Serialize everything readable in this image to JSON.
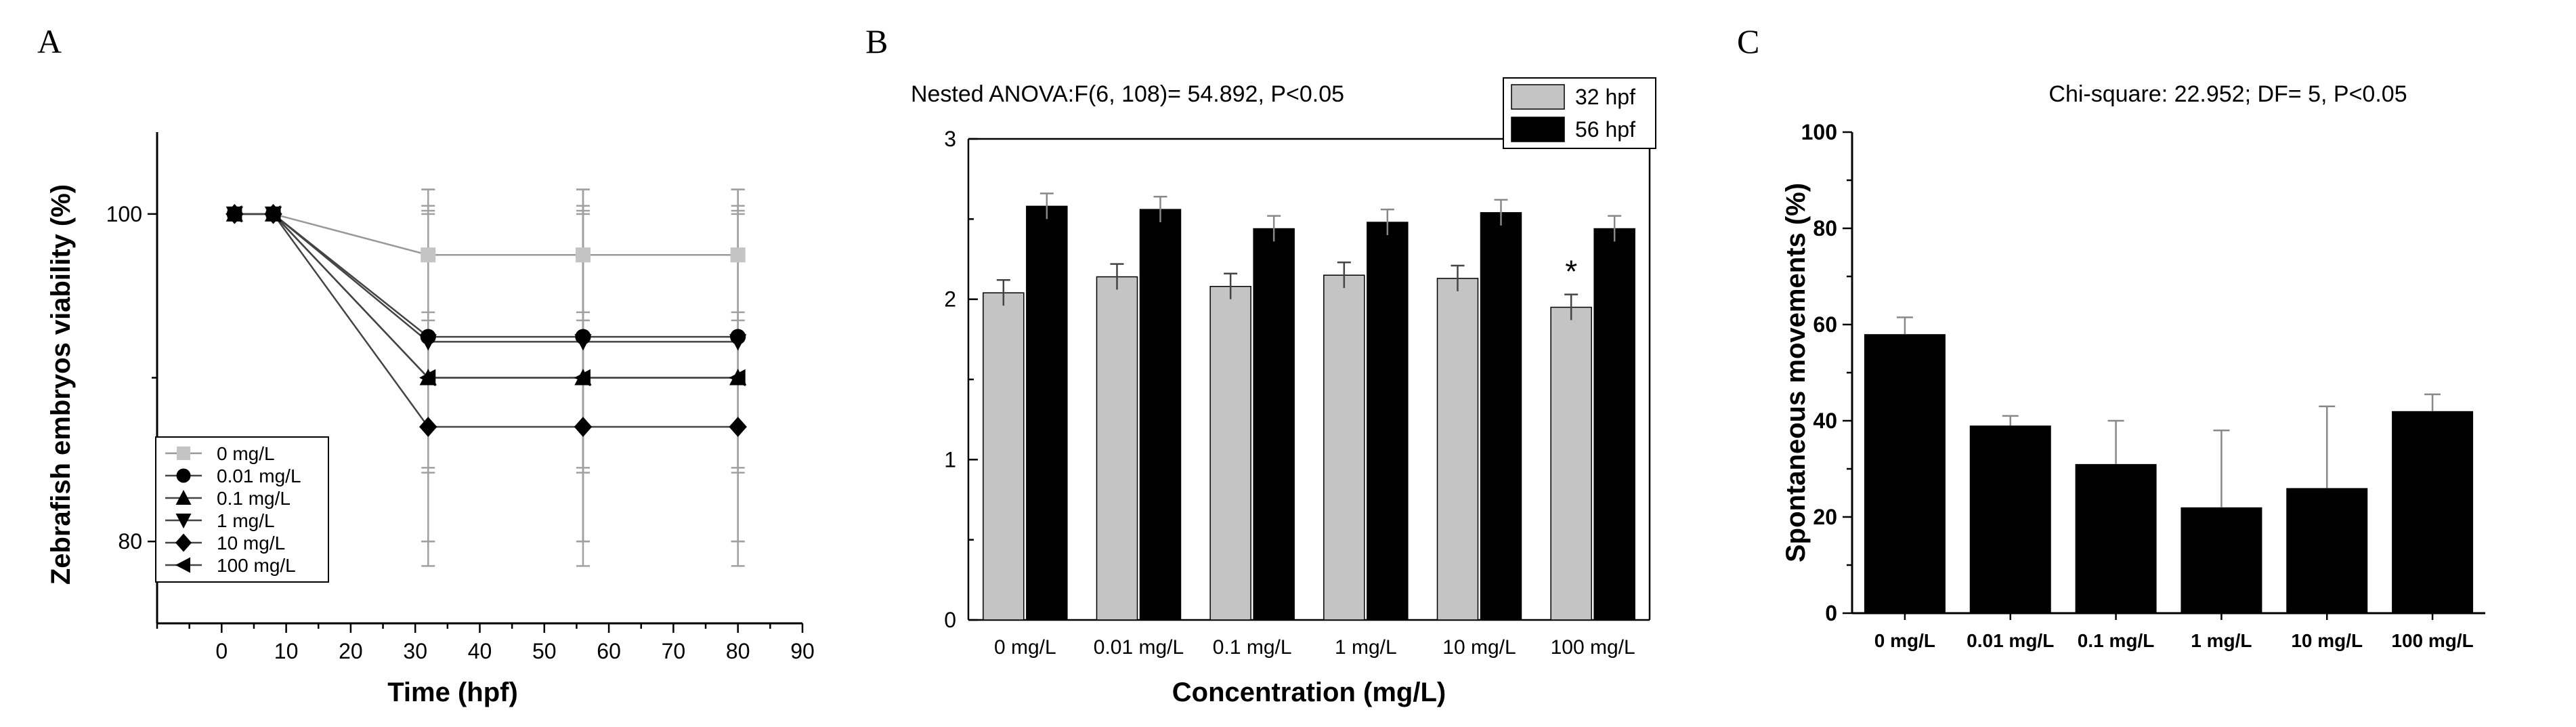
{
  "panels": [
    {
      "letter": "A"
    },
    {
      "letter": "B"
    },
    {
      "letter": "C"
    }
  ],
  "colors": {
    "grey": "#c4c4c4",
    "black": "#000000",
    "line": "#555555",
    "errbar": "#9a9a9a"
  },
  "chart_data": [
    {
      "type": "line",
      "panel": "A",
      "title": "",
      "xlabel": "Time (hpf)",
      "ylabel": "Zebrafish embryos viability (%)",
      "xlim": [
        -10,
        90
      ],
      "xticks": [
        0,
        10,
        20,
        30,
        40,
        50,
        60,
        70,
        80,
        90
      ],
      "ylim": [
        75,
        105
      ],
      "yticks": [
        80,
        100
      ],
      "x": [
        2,
        8,
        32,
        56,
        80
      ],
      "series": [
        {
          "name": "0 mg/L",
          "marker": "square",
          "color": "#c4c4c4",
          "values": [
            100,
            100,
            97.5,
            97.5,
            97.5
          ],
          "err": [
            0,
            0,
            4,
            4,
            4
          ]
        },
        {
          "name": "0.01 mg/L",
          "marker": "circle",
          "color": "#000000",
          "values": [
            100,
            100,
            92.5,
            92.5,
            92.5
          ],
          "err": [
            0,
            0,
            8,
            8,
            8
          ]
        },
        {
          "name": "0.1 mg/L",
          "marker": "triangle-up",
          "color": "#000000",
          "values": [
            100,
            100,
            90,
            90,
            90
          ],
          "err": [
            0,
            0,
            10,
            10,
            10
          ]
        },
        {
          "name": "1 mg/L",
          "marker": "triangle-down",
          "color": "#000000",
          "values": [
            100,
            100,
            92.2,
            92.2,
            92.2
          ],
          "err": [
            0,
            0,
            8,
            8,
            8
          ]
        },
        {
          "name": "10 mg/L",
          "marker": "diamond",
          "color": "#000000",
          "values": [
            100,
            100,
            87,
            87,
            87
          ],
          "err": [
            0,
            0,
            7,
            7,
            7
          ]
        },
        {
          "name": "100 mg/L",
          "marker": "triangle-left",
          "color": "#000000",
          "values": [
            100,
            100,
            90,
            90,
            90
          ],
          "err": [
            0,
            0,
            11.5,
            11.5,
            11.5
          ]
        }
      ],
      "legend_position": "bottom-left"
    },
    {
      "type": "bar",
      "panel": "B",
      "title": "Nested ANOVA:F(6, 108)= 54.892,  P<0.05",
      "xlabel": "Concentration (mg/L)",
      "ylabel": "",
      "ylim": [
        0,
        3
      ],
      "yticks": [
        0,
        1,
        2,
        3
      ],
      "categories": [
        "0 mg/L",
        "0.01 mg/L",
        "0.1 mg/L",
        "1 mg/L",
        "10 mg/L",
        "100 mg/L"
      ],
      "series": [
        {
          "name": "32 hpf",
          "color": "#c4c4c4",
          "values": [
            2.04,
            2.14,
            2.08,
            2.15,
            2.13,
            1.95
          ],
          "err": [
            0.08,
            0.08,
            0.08,
            0.08,
            0.08,
            0.08
          ]
        },
        {
          "name": "56 hpf",
          "color": "#000000",
          "values": [
            2.58,
            2.56,
            2.44,
            2.48,
            2.54,
            2.44
          ],
          "err": [
            0.08,
            0.08,
            0.08,
            0.08,
            0.08,
            0.08
          ]
        }
      ],
      "annotation": "*",
      "legend_position": "top-right"
    },
    {
      "type": "bar",
      "panel": "C",
      "title": "Chi-square: 22.952; DF= 5, P<0.05",
      "xlabel": "",
      "ylabel": "Spontaneous movements (%)",
      "ylim": [
        0,
        100
      ],
      "yticks": [
        0,
        20,
        40,
        60,
        80,
        100
      ],
      "categories": [
        "0 mg/L",
        "0.01 mg/L",
        "0.1 mg/L",
        "1 mg/L",
        "10 mg/L",
        "100 mg/L"
      ],
      "values": [
        58,
        39,
        31,
        22,
        26,
        42
      ],
      "err": [
        3.5,
        2,
        9,
        16,
        17,
        3.5
      ],
      "color": "#000000"
    }
  ]
}
